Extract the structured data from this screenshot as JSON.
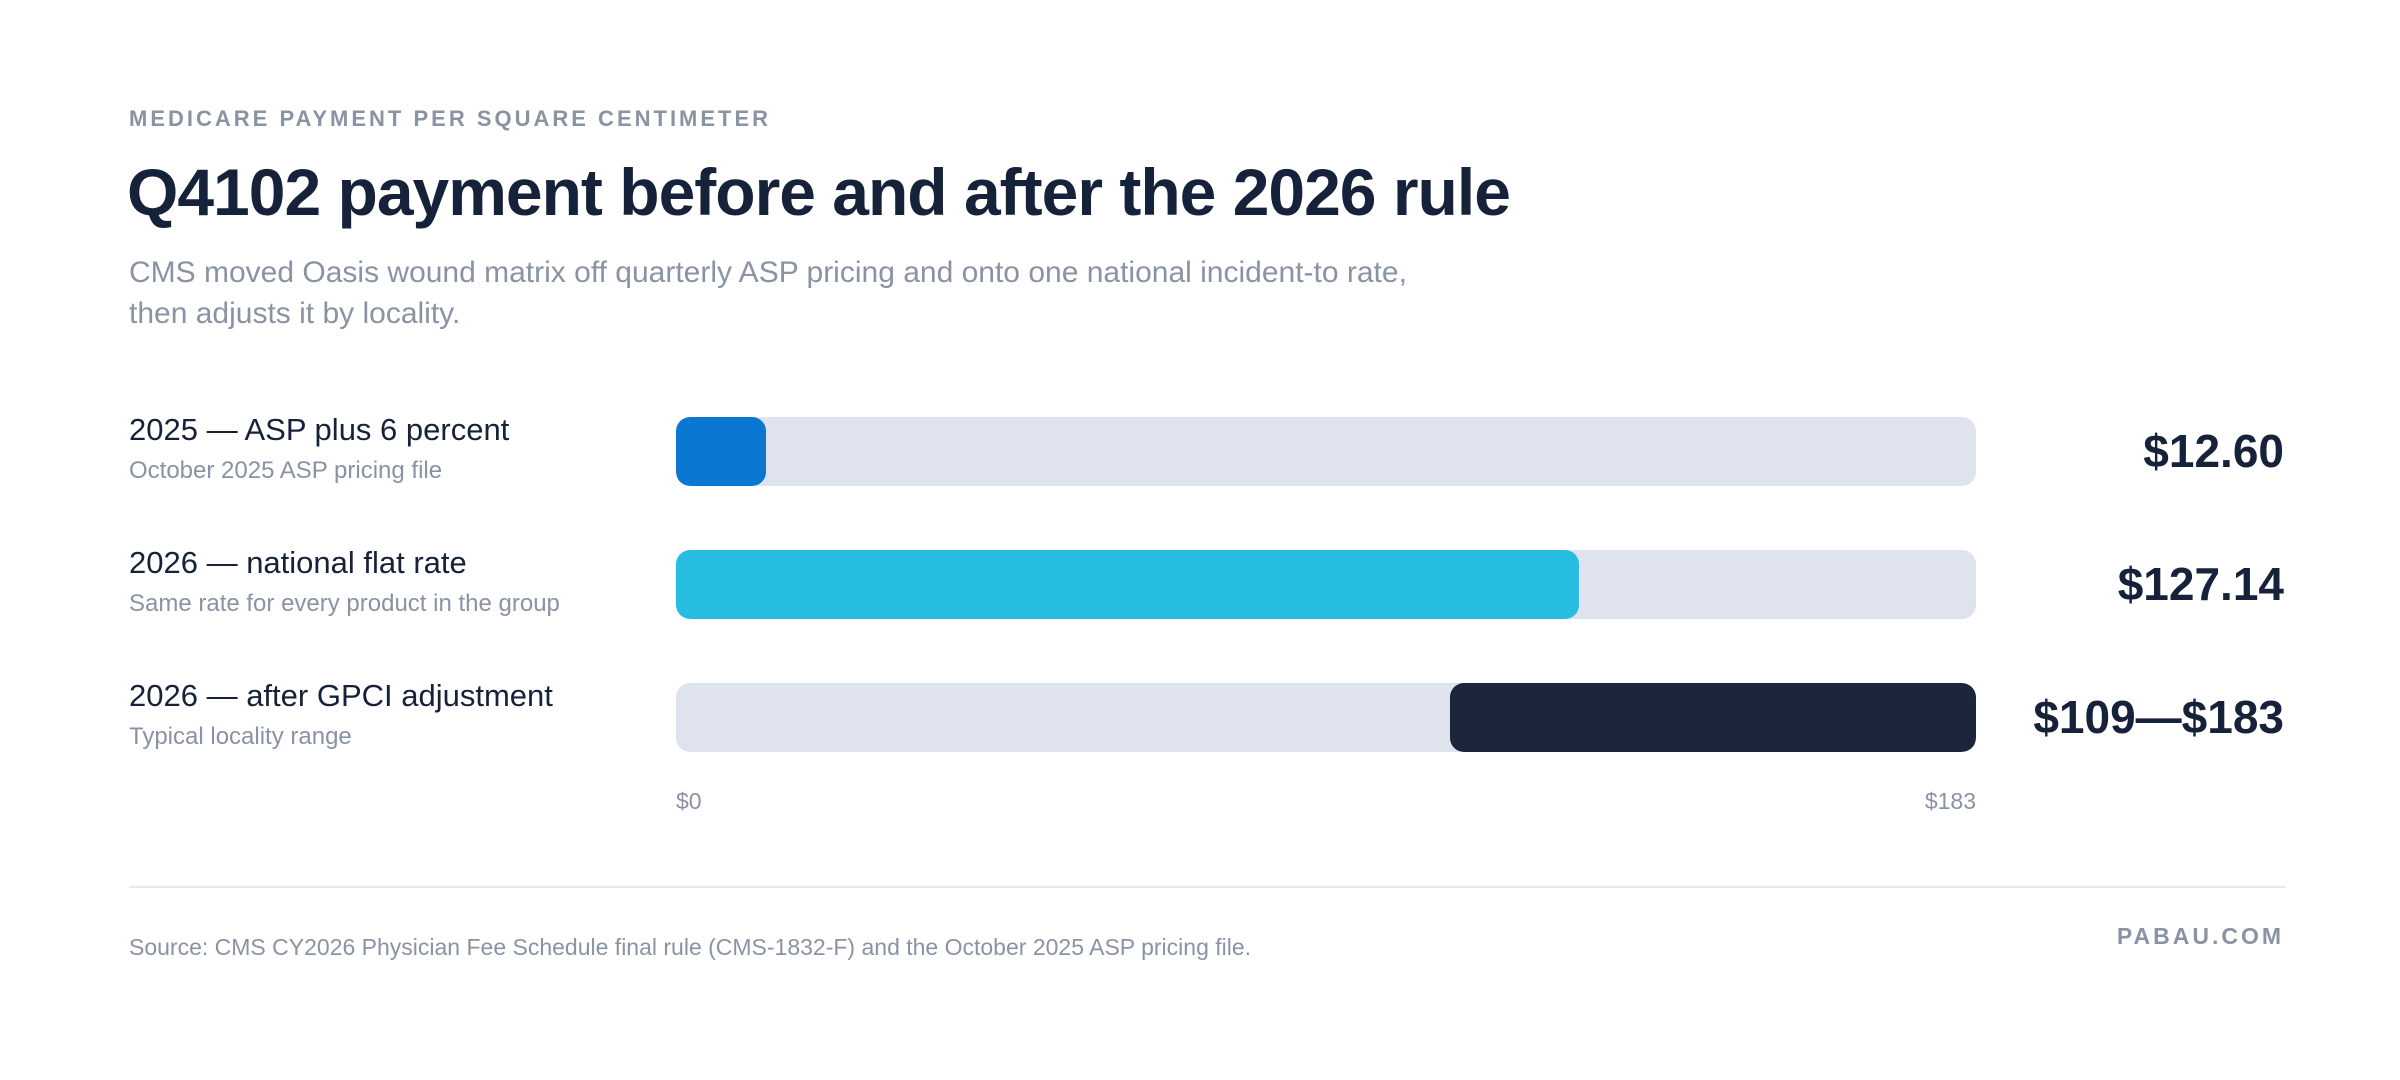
{
  "header": {
    "eyebrow": "MEDICARE PAYMENT PER SQUARE CENTIMETER",
    "title": "Q4102 payment before and after the 2026 rule",
    "subtitle_line1": "CMS moved Oasis wound matrix off quarterly ASP pricing and onto one national incident-to rate,",
    "subtitle_line2": "then adjusts it by locality."
  },
  "chart_data": {
    "type": "bar",
    "orientation": "horizontal",
    "categories": [
      "2025 — ASP plus 6 percent",
      "2026 — national flat rate",
      "2026 — after GPCI adjustment"
    ],
    "notes": [
      "October 2025 ASP pricing file",
      "Same rate for every product in the group",
      "Typical locality range"
    ],
    "bars": [
      {
        "start": 0,
        "end": 12.6,
        "value_label": "$12.60",
        "color": "#0a77d1"
      },
      {
        "start": 0,
        "end": 127.14,
        "value_label": "$127.14",
        "color": "#26bde1"
      },
      {
        "start": 109,
        "end": 183,
        "value_label": "$109—$183",
        "color": "#1c263b"
      }
    ],
    "xlim": [
      0,
      183
    ],
    "tick_labels": [
      "$0",
      "$183"
    ],
    "track_color": "#dfe3ed"
  },
  "footer": {
    "source": "Source: CMS CY2026 Physician Fee Schedule final rule (CMS-1832-F) and the October 2025 ASP pricing file.",
    "brand": "PABAU.COM"
  }
}
